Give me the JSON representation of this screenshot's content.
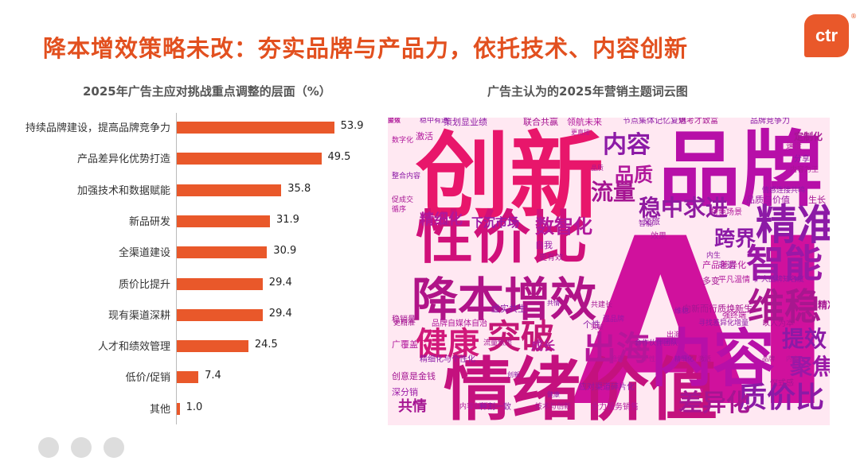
{
  "page_title": "降本增效策略未改：夯实品牌与产品力，依托技术、内容创新",
  "logo_text": "ctr",
  "logo_mark": "®",
  "chart_data": [
    {
      "type": "bar",
      "orientation": "horizontal",
      "title": "2025年广告主应对挑战重点调整的层面（%）",
      "categories": [
        "持续品牌建设，提高品牌竞争力",
        "产品差异化优势打造",
        "加强技术和数据赋能",
        "新品研发",
        "全渠道建设",
        "质价比提升",
        "现有渠道深耕",
        "人才和绩效管理",
        "低价/促销",
        "其他"
      ],
      "values": [
        53.9,
        49.5,
        35.8,
        31.9,
        30.9,
        29.4,
        29.4,
        24.5,
        7.4,
        1.0
      ],
      "value_labels": [
        "53.9",
        "49.5",
        "35.8",
        "31.9",
        "30.9",
        "29.4",
        "29.4",
        "24.5",
        "7.4",
        "1.0"
      ],
      "bar_color": "#e9582a",
      "xlim": [
        0,
        60
      ]
    },
    {
      "type": "wordcloud",
      "title": "广告主认为的2025年营销主题词云图",
      "background": "#ffe8f2",
      "palette": [
        "#e8166b",
        "#b70fa8",
        "#7e1aa6",
        "#d12f7e"
      ],
      "words": [
        {
          "text": "AI",
          "weight": 100,
          "color": "#d0119d"
        },
        {
          "text": "创新",
          "weight": 92,
          "color": "#e8166b"
        },
        {
          "text": "品牌",
          "weight": 85,
          "color": "#b70fa8"
        },
        {
          "text": "情绪价值",
          "weight": 70,
          "color": "#c4117e"
        },
        {
          "text": "内容",
          "weight": 68,
          "color": "#b70fa8"
        },
        {
          "text": "性价比",
          "weight": 60,
          "color": "#d0107a"
        },
        {
          "text": "降本增效",
          "weight": 55,
          "color": "#b01388"
        },
        {
          "text": "精准",
          "weight": 45,
          "color": "#8c1aa6"
        },
        {
          "text": "智能",
          "weight": 43,
          "color": "#9a18a6"
        },
        {
          "text": "维稳",
          "weight": 42,
          "color": "#a8178f"
        },
        {
          "text": "出海",
          "weight": 40,
          "color": "#b5169a"
        },
        {
          "text": "突破",
          "weight": 40,
          "color": "#c41676"
        },
        {
          "text": "健康",
          "weight": 38,
          "color": "#d0187a"
        },
        {
          "text": "质价比",
          "weight": 33,
          "color": "#8b1aa6"
        },
        {
          "text": "差异化",
          "weight": 30,
          "color": "#a51592"
        },
        {
          "text": "稳中求进",
          "weight": 28,
          "color": "#8f1aa0"
        },
        {
          "text": "流量",
          "weight": 28,
          "color": "#a51592"
        },
        {
          "text": "内容",
          "weight": 27,
          "color": "#8c1aa6"
        },
        {
          "text": "品质",
          "weight": 25,
          "color": "#b0179b"
        },
        {
          "text": "数智化",
          "weight": 24,
          "color": "#b0179b"
        },
        {
          "text": "提效",
          "weight": 24,
          "color": "#8c1aa6"
        },
        {
          "text": "聚焦",
          "weight": 24,
          "color": "#9a18a6"
        },
        {
          "text": "跨界",
          "weight": 22,
          "color": "#8c1aa6"
        },
        {
          "text": "精细化",
          "weight": 20,
          "color": "#b0179b"
        },
        {
          "text": "共情",
          "weight": 20,
          "color": "#a51592"
        },
        {
          "text": "下沉市场",
          "weight": 16,
          "color": "#9a18a6"
        },
        {
          "text": "成长",
          "weight": 15,
          "color": "#b0179b"
        },
        {
          "text": "策划显业绩",
          "weight": 11,
          "color": "#8c1aa6"
        },
        {
          "text": "联合共赢",
          "weight": 11,
          "color": "#a51592"
        },
        {
          "text": "领航未来",
          "weight": 11,
          "color": "#b0179b"
        },
        {
          "text": "节点集体记忆复魅",
          "weight": 10,
          "color": "#8c1aa6"
        },
        {
          "text": "思考才致富",
          "weight": 10,
          "color": "#a51592"
        },
        {
          "text": "品牌竞争力",
          "weight": 10,
          "color": "#8c1aa6"
        },
        {
          "text": "定制化",
          "weight": 12,
          "color": "#a51592"
        },
        {
          "text": "速度",
          "weight": 10,
          "color": "#b0179b"
        },
        {
          "text": "分享",
          "weight": 10,
          "color": "#8c1aa6"
        },
        {
          "text": "内容为王",
          "weight": 9,
          "color": "#a51592"
        },
        {
          "text": "稳中有进",
          "weight": 9,
          "color": "#8c1aa6"
        },
        {
          "text": "激活",
          "weight": 11,
          "color": "#b0179b"
        },
        {
          "text": "品质与价值",
          "weight": 11,
          "color": "#9a18a6"
        },
        {
          "text": "情感连接共鸣",
          "weight": 9,
          "color": "#8c1aa6"
        },
        {
          "text": "生长",
          "weight": 11,
          "color": "#a51592"
        },
        {
          "text": "特色场景",
          "weight": 10,
          "color": "#b0179b"
        },
        {
          "text": "自我",
          "weight": 11,
          "color": "#9a18a6"
        },
        {
          "text": "更有效",
          "weight": 10,
          "color": "#a51592"
        },
        {
          "text": "文旅",
          "weight": 11,
          "color": "#8c1aa6"
        },
        {
          "text": "效果",
          "weight": 10,
          "color": "#b0179b"
        },
        {
          "text": "非遗",
          "weight": 11,
          "color": "#8c1aa6"
        },
        {
          "text": "多变",
          "weight": 11,
          "color": "#a51592"
        },
        {
          "text": "平凡温情",
          "weight": 10,
          "color": "#b0179b"
        },
        {
          "text": "扩大品牌知名度",
          "weight": 9,
          "color": "#8c1aa6"
        },
        {
          "text": "共建长",
          "weight": 9,
          "color": "#a51592"
        },
        {
          "text": "强品牌",
          "weight": 9,
          "color": "#9a18a6"
        },
        {
          "text": "强终端",
          "weight": 10,
          "color": "#b0179b"
        },
        {
          "text": "个性",
          "weight": 11,
          "color": "#8c1aa6"
        },
        {
          "text": "向新而行质焕新生",
          "weight": 11,
          "color": "#a51592"
        },
        {
          "text": "寻找差异化增量",
          "weight": 9,
          "color": "#8c1aa6"
        },
        {
          "text": "以人为本",
          "weight": 10,
          "color": "#a51592"
        },
        {
          "text": "品牌自媒体自治",
          "weight": 10,
          "color": "#b0179b"
        },
        {
          "text": "虚实共生",
          "weight": 11,
          "color": "#8c1aa6"
        },
        {
          "text": "稳销量",
          "weight": 10,
          "color": "#a51592"
        },
        {
          "text": "广覆盖",
          "weight": 11,
          "color": "#b0179b"
        },
        {
          "text": "精细化与个性化",
          "weight": 10,
          "color": "#8c1aa6"
        },
        {
          "text": "创意是金钱",
          "weight": 10,
          "color": "#a51592"
        },
        {
          "text": "深分销",
          "weight": 11,
          "color": "#9a18a6"
        },
        {
          "text": "内容创新",
          "weight": 11,
          "color": "#b0179b"
        },
        {
          "text": "种割一致",
          "weight": 9,
          "color": "#8c1aa6"
        },
        {
          "text": "技术与创新",
          "weight": 10,
          "color": "#a51592"
        },
        {
          "text": "全力服务销售",
          "weight": 9,
          "color": "#b0179b"
        },
        {
          "text": "应对渠道碎片化",
          "weight": 10,
          "color": "#8c1aa6"
        },
        {
          "text": "仪式感",
          "weight": 10,
          "color": "#a51592"
        },
        {
          "text": "产品差异化",
          "weight": 10,
          "color": "#b0179b"
        },
        {
          "text": "内生",
          "weight": 11,
          "color": "#8c1aa6"
        },
        {
          "text": "更精准",
          "weight": 9,
          "color": "#a51592"
        },
        {
          "text": "数字化",
          "weight": 9,
          "color": "#b0179b"
        },
        {
          "text": "整合内容",
          "weight": 9,
          "color": "#8c1aa6"
        },
        {
          "text": "促成交",
          "weight": 9,
          "color": "#a51592"
        },
        {
          "text": "循序",
          "weight": 9,
          "color": "#b0179b"
        },
        {
          "text": "智能",
          "weight": 9,
          "color": "#8c1aa6"
        },
        {
          "text": "品质",
          "weight": 9,
          "color": "#a51592"
        },
        {
          "text": "更直接",
          "weight": 9,
          "color": "#b0179b"
        },
        {
          "text": "合作伙伴团队",
          "weight": 8,
          "color": "#8c1aa6"
        },
        {
          "text": "流量焦虑",
          "weight": 8,
          "color": "#a51592"
        },
        {
          "text": "出海",
          "weight": 9,
          "color": "#b0179b"
        },
        {
          "text": "维稳",
          "weight": 9,
          "color": "#8c1aa6"
        },
        {
          "text": "精准",
          "weight": 9,
          "color": "#a51592"
        },
        {
          "text": "突破",
          "weight": 9,
          "color": "#b0179b"
        },
        {
          "text": "健康",
          "weight": 9,
          "color": "#8c1aa6"
        },
        {
          "text": "AI",
          "weight": 12,
          "color": "#a51592"
        },
        {
          "text": "个性",
          "weight": 8,
          "color": "#b0179b"
        },
        {
          "text": "共情",
          "weight": 8,
          "color": "#8c1aa6"
        },
        {
          "text": "激活",
          "weight": 8,
          "color": "#a51592"
        },
        {
          "text": "稳健",
          "weight": 8,
          "color": "#b0179b"
        },
        {
          "text": "创新",
          "weight": 8,
          "color": "#8c1aa6"
        },
        {
          "text": "品牌",
          "weight": 8,
          "color": "#a51592"
        },
        {
          "text": "内容",
          "weight": 8,
          "color": "#b0179b"
        },
        {
          "text": "精细化",
          "weight": 8,
          "color": "#8c1aa6"
        },
        {
          "text": "提效",
          "weight": 8,
          "color": "#a51592"
        },
        {
          "text": "聚焦",
          "weight": 8,
          "color": "#b0179b"
        }
      ]
    }
  ]
}
